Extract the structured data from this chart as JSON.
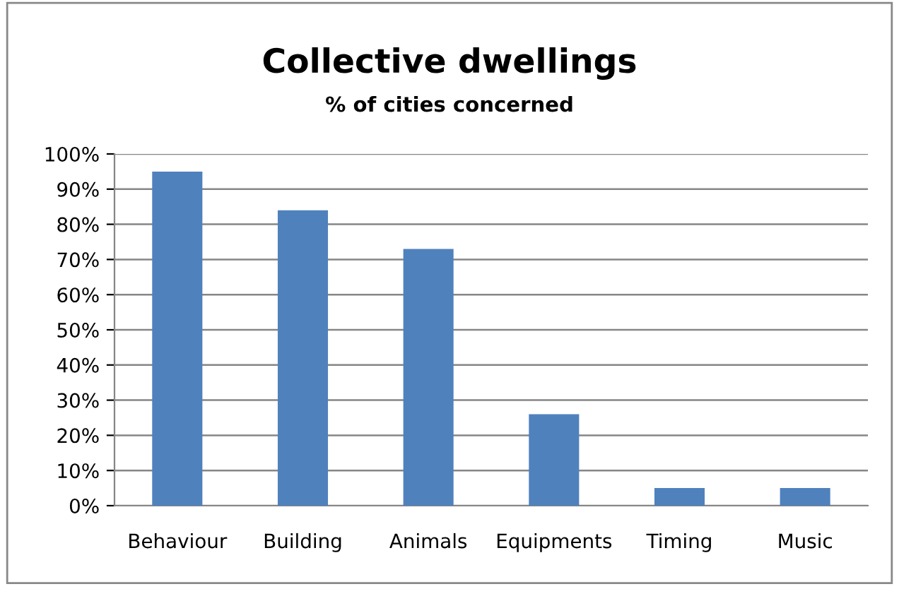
{
  "chart_data": {
    "type": "bar",
    "title": "Collective dwellings",
    "subtitle": "% of cities concerned",
    "categories": [
      "Behaviour",
      "Building",
      "Animals",
      "Equipments",
      "Timing",
      "Music"
    ],
    "values": [
      95,
      84,
      73,
      26,
      5,
      5
    ],
    "color": "#4f81bd",
    "ylim": [
      0,
      100
    ],
    "yticks": [
      {
        "value": 0,
        "label": "0%"
      },
      {
        "value": 10,
        "label": "10%"
      },
      {
        "value": 20,
        "label": "20%"
      },
      {
        "value": 30,
        "label": "30%"
      },
      {
        "value": 40,
        "label": "40%"
      },
      {
        "value": 50,
        "label": "50%"
      },
      {
        "value": 60,
        "label": "60%"
      },
      {
        "value": 70,
        "label": "70%"
      },
      {
        "value": 80,
        "label": "80%"
      },
      {
        "value": 90,
        "label": "90%"
      },
      {
        "value": 100,
        "label": "100%"
      }
    ],
    "grid": "y",
    "legend": false
  }
}
